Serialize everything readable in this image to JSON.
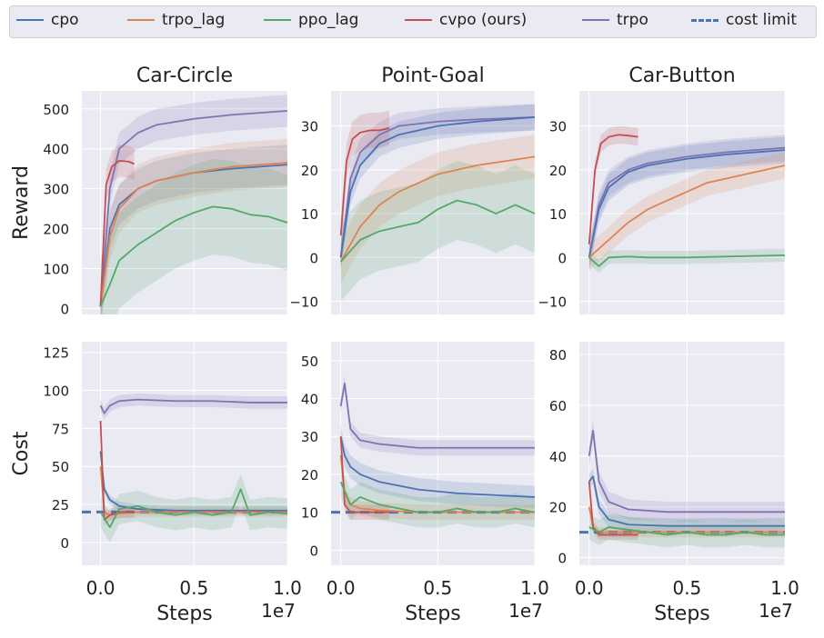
{
  "legend": [
    {
      "name": "cpo",
      "color": "#4c72b0",
      "dashed": false
    },
    {
      "name": "trpo_lag",
      "color": "#dd8452",
      "dashed": false
    },
    {
      "name": "ppo_lag",
      "color": "#55a868",
      "dashed": false
    },
    {
      "name": "cvpo (ours)",
      "color": "#c44e52",
      "dashed": false
    },
    {
      "name": "trpo",
      "color": "#8172b3",
      "dashed": false
    },
    {
      "name": "cost limit",
      "color": "#4c72b0",
      "dashed": true
    }
  ],
  "row_labels": [
    "Reward",
    "Cost"
  ],
  "x_label": "Steps",
  "x_multiplier": "1e7",
  "x_ticks": [
    "0.0",
    "0.5",
    "1.0"
  ],
  "chart_data": [
    {
      "type": "line",
      "title": "Car-Circle",
      "ylabel": "Reward",
      "xlim": [
        -0.1,
        1.0
      ],
      "ylim": [
        -15,
        545
      ],
      "yticks": [
        0,
        100,
        200,
        300,
        400,
        500
      ],
      "series": [
        {
          "name": "trpo",
          "x": [
            0,
            0.05,
            0.1,
            0.2,
            0.3,
            0.5,
            0.7,
            1.0
          ],
          "y": [
            5,
            300,
            400,
            440,
            460,
            475,
            485,
            495
          ],
          "band": 40
        },
        {
          "name": "cpo",
          "x": [
            0,
            0.05,
            0.1,
            0.2,
            0.3,
            0.5,
            0.7,
            1.0
          ],
          "y": [
            5,
            200,
            260,
            300,
            320,
            340,
            350,
            360
          ],
          "band": 50
        },
        {
          "name": "trpo_lag",
          "x": [
            0,
            0.05,
            0.1,
            0.2,
            0.3,
            0.5,
            0.7,
            1.0
          ],
          "y": [
            5,
            180,
            250,
            300,
            320,
            340,
            355,
            365
          ],
          "band": 60
        },
        {
          "name": "cvpo (ours)",
          "x": [
            0,
            0.03,
            0.06,
            0.1,
            0.15,
            0.18
          ],
          "y": [
            5,
            310,
            355,
            370,
            368,
            362
          ],
          "band": 40
        },
        {
          "name": "ppo_lag",
          "x": [
            0,
            0.05,
            0.1,
            0.2,
            0.3,
            0.4,
            0.5,
            0.6,
            0.7,
            0.8,
            0.9,
            1.0
          ],
          "y": [
            5,
            60,
            120,
            160,
            190,
            220,
            240,
            255,
            250,
            235,
            230,
            215
          ],
          "band": 120
        }
      ]
    },
    {
      "type": "line",
      "title": "Point-Goal",
      "ylabel": "",
      "xlim": [
        -0.05,
        1.0
      ],
      "ylim": [
        -13,
        38
      ],
      "yticks": [
        -10,
        0,
        10,
        20,
        30
      ],
      "series": [
        {
          "name": "trpo",
          "x": [
            0,
            0.05,
            0.1,
            0.2,
            0.3,
            0.5,
            0.7,
            1.0
          ],
          "y": [
            0,
            18,
            24,
            28,
            30,
            31,
            31.5,
            32
          ],
          "band": 3
        },
        {
          "name": "cpo",
          "x": [
            0,
            0.05,
            0.1,
            0.2,
            0.3,
            0.5,
            0.7,
            1.0
          ],
          "y": [
            0,
            15,
            21,
            26,
            28,
            30,
            31,
            32
          ],
          "band": 3
        },
        {
          "name": "cvpo (ours)",
          "x": [
            0,
            0.03,
            0.06,
            0.1,
            0.15,
            0.2,
            0.25
          ],
          "y": [
            5,
            22,
            27,
            28.5,
            29,
            29,
            29.5
          ],
          "band": 4
        },
        {
          "name": "trpo_lag",
          "x": [
            0,
            0.05,
            0.1,
            0.2,
            0.3,
            0.5,
            0.7,
            1.0
          ],
          "y": [
            -1,
            3,
            7,
            12,
            15,
            19,
            21,
            23
          ],
          "band": 5
        },
        {
          "name": "ppo_lag",
          "x": [
            0,
            0.1,
            0.2,
            0.3,
            0.4,
            0.5,
            0.6,
            0.7,
            0.8,
            0.9,
            1.0
          ],
          "y": [
            -1,
            4,
            6,
            7,
            8,
            11,
            13,
            12,
            10,
            12,
            10
          ],
          "band": 9
        }
      ]
    },
    {
      "type": "line",
      "title": "Car-Button",
      "ylabel": "",
      "xlim": [
        -0.05,
        1.0
      ],
      "ylim": [
        -13,
        38
      ],
      "yticks": [
        -10,
        0,
        10,
        20,
        30
      ],
      "series": [
        {
          "name": "trpo",
          "x": [
            0,
            0.05,
            0.1,
            0.2,
            0.3,
            0.5,
            0.7,
            1.0
          ],
          "y": [
            0,
            12,
            17,
            20,
            21.5,
            23,
            24,
            25
          ],
          "band": 3
        },
        {
          "name": "cpo",
          "x": [
            0,
            0.05,
            0.1,
            0.2,
            0.3,
            0.5,
            0.7,
            1.0
          ],
          "y": [
            0,
            11,
            16,
            19.5,
            21,
            22.5,
            23.5,
            24.5
          ],
          "band": 3
        },
        {
          "name": "cvpo (ours)",
          "x": [
            0,
            0.03,
            0.06,
            0.1,
            0.15,
            0.2,
            0.25
          ],
          "y": [
            3,
            20,
            26,
            27.5,
            28,
            27.8,
            27.5
          ],
          "band": 2
        },
        {
          "name": "trpo_lag",
          "x": [
            0,
            0.1,
            0.2,
            0.3,
            0.4,
            0.5,
            0.6,
            0.7,
            0.8,
            0.9,
            1.0
          ],
          "y": [
            0,
            4,
            8,
            11,
            13,
            15,
            17,
            18,
            19,
            20,
            21
          ],
          "band": 3
        },
        {
          "name": "ppo_lag",
          "x": [
            0,
            0.05,
            0.1,
            0.2,
            0.3,
            0.5,
            0.7,
            1.0
          ],
          "y": [
            0,
            -2,
            0,
            0.2,
            0,
            0,
            0.2,
            0.5
          ],
          "band": 1.5
        }
      ]
    },
    {
      "type": "line",
      "title": "",
      "ylabel": "Cost",
      "xlim": [
        -0.1,
        1.0
      ],
      "ylim": [
        -15,
        132
      ],
      "yticks": [
        0,
        25,
        50,
        75,
        100,
        125
      ],
      "series": [
        {
          "name": "trpo",
          "x": [
            0,
            0.02,
            0.05,
            0.1,
            0.2,
            0.4,
            0.6,
            0.8,
            1.0
          ],
          "y": [
            90,
            85,
            90,
            93,
            94,
            93,
            93,
            92,
            92
          ],
          "band": 4
        },
        {
          "name": "cpo",
          "x": [
            0,
            0.02,
            0.05,
            0.1,
            0.2,
            0.4,
            0.6,
            0.8,
            1.0
          ],
          "y": [
            60,
            35,
            28,
            24,
            22,
            21,
            21,
            21,
            21
          ],
          "band": 3
        },
        {
          "name": "trpo_lag",
          "x": [
            0,
            0.02,
            0.05,
            0.1,
            0.2,
            0.4,
            0.6,
            0.8,
            1.0
          ],
          "y": [
            50,
            20,
            18,
            19,
            20,
            20,
            20,
            20,
            20
          ],
          "band": 3
        },
        {
          "name": "cvpo (ours)",
          "x": [
            0,
            0.02,
            0.05,
            0.1,
            0.15,
            0.18
          ],
          "y": [
            80,
            15,
            18,
            20,
            20,
            20
          ],
          "band": 4
        },
        {
          "name": "ppo_lag",
          "x": [
            0,
            0.05,
            0.1,
            0.2,
            0.3,
            0.4,
            0.5,
            0.6,
            0.7,
            0.75,
            0.8,
            0.9,
            1.0
          ],
          "y": [
            20,
            10,
            22,
            24,
            20,
            18,
            20,
            18,
            20,
            35,
            18,
            20,
            19
          ],
          "band": 10
        }
      ],
      "cost_limit": 20
    },
    {
      "type": "line",
      "title": "",
      "ylabel": "",
      "xlim": [
        -0.05,
        1.0
      ],
      "ylim": [
        -4,
        55
      ],
      "yticks": [
        0,
        10,
        20,
        30,
        40,
        50
      ],
      "series": [
        {
          "name": "trpo",
          "x": [
            0,
            0.02,
            0.05,
            0.1,
            0.2,
            0.4,
            0.6,
            0.8,
            1.0
          ],
          "y": [
            38,
            44,
            32,
            29,
            28,
            27,
            27,
            27,
            27
          ],
          "band": 2
        },
        {
          "name": "cpo",
          "x": [
            0,
            0.02,
            0.05,
            0.1,
            0.2,
            0.4,
            0.6,
            0.8,
            1.0
          ],
          "y": [
            30,
            25,
            22,
            20,
            18,
            16,
            15,
            14.5,
            14
          ],
          "band": 3
        },
        {
          "name": "trpo_lag",
          "x": [
            0,
            0.02,
            0.05,
            0.1,
            0.2,
            0.4,
            0.6,
            0.8,
            1.0
          ],
          "y": [
            25,
            15,
            12,
            11,
            10.5,
            10,
            10,
            10,
            10
          ],
          "band": 2
        },
        {
          "name": "cvpo (ours)",
          "x": [
            0,
            0.02,
            0.05,
            0.1,
            0.15,
            0.2,
            0.25
          ],
          "y": [
            30,
            12,
            10,
            10,
            10,
            10,
            10
          ],
          "band": 2
        },
        {
          "name": "ppo_lag",
          "x": [
            0,
            0.05,
            0.1,
            0.2,
            0.3,
            0.4,
            0.5,
            0.6,
            0.7,
            0.8,
            0.9,
            1.0
          ],
          "y": [
            18,
            12,
            14,
            12,
            11,
            10,
            10,
            11,
            10,
            10,
            11,
            10
          ],
          "band": 4
        }
      ],
      "cost_limit": 10
    },
    {
      "type": "line",
      "title": "",
      "ylabel": "",
      "xlim": [
        -0.05,
        1.0
      ],
      "ylim": [
        -3,
        85
      ],
      "yticks": [
        0,
        20,
        40,
        60,
        80
      ],
      "series": [
        {
          "name": "trpo",
          "x": [
            0,
            0.02,
            0.05,
            0.1,
            0.2,
            0.4,
            0.6,
            0.8,
            1.0
          ],
          "y": [
            40,
            50,
            30,
            22,
            19,
            18,
            18,
            18,
            18
          ],
          "band": 4
        },
        {
          "name": "cpo",
          "x": [
            0,
            0.02,
            0.05,
            0.1,
            0.2,
            0.4,
            0.6,
            0.8,
            1.0
          ],
          "y": [
            30,
            32,
            20,
            15,
            13,
            12.5,
            12.5,
            12.5,
            12.5
          ],
          "band": 3
        },
        {
          "name": "trpo_lag",
          "x": [
            0,
            0.02,
            0.05,
            0.1,
            0.2,
            0.4,
            0.6,
            0.8,
            1.0
          ],
          "y": [
            20,
            12,
            10,
            10,
            10,
            10,
            10,
            10,
            10
          ],
          "band": 2
        },
        {
          "name": "cvpo (ours)",
          "x": [
            0,
            0.02,
            0.05,
            0.1,
            0.15,
            0.2,
            0.25
          ],
          "y": [
            30,
            12,
            9,
            9,
            9,
            9,
            9
          ],
          "band": 2
        },
        {
          "name": "ppo_lag",
          "x": [
            0,
            0.05,
            0.1,
            0.2,
            0.3,
            0.4,
            0.5,
            0.6,
            0.7,
            0.8,
            0.9,
            1.0
          ],
          "y": [
            12,
            10,
            12,
            11,
            10,
            9,
            10,
            9,
            9,
            10,
            9,
            9
          ],
          "band": 5
        }
      ],
      "cost_limit": 10
    }
  ]
}
